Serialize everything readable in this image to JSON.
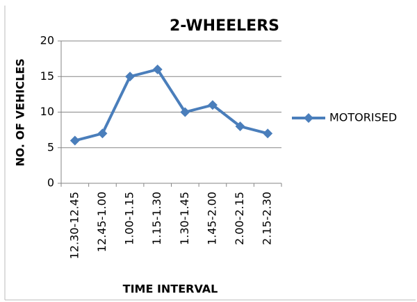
{
  "chart_data": {
    "type": "line",
    "title": "2-WHEELERS",
    "y_label": "NO. OF VEHICLES",
    "x_label": "TIME INTERVAL",
    "categories": [
      "12.30-12.45",
      "12.45-1.00",
      "1.00-1.15",
      "1.15-1.30",
      "1.30-1.45",
      "1.45-2.00",
      "2.00-2.15",
      "2.15-2.30"
    ],
    "series": [
      {
        "name": "MOTORISED",
        "color": "#4a7ebb",
        "values": [
          6,
          7,
          15,
          16,
          10,
          11,
          8,
          7
        ]
      }
    ],
    "ylim": [
      0,
      20
    ],
    "yticks": [
      0,
      5,
      10,
      15,
      20
    ],
    "grid": true,
    "legend": "right"
  }
}
